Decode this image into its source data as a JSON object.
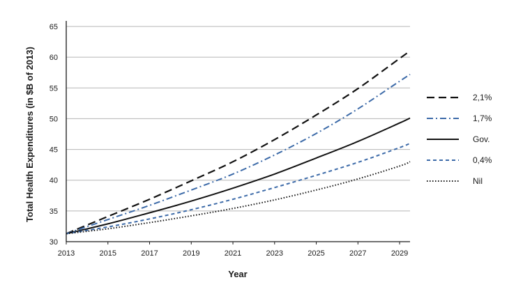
{
  "chart_data": {
    "type": "line",
    "title": "",
    "xlabel": "Year",
    "ylabel": "Total Health Expenditures (in $B of 2013)",
    "xlim": [
      2013,
      2029.5
    ],
    "ylim": [
      30,
      65
    ],
    "x_ticks": [
      "2013",
      "2015",
      "2017",
      "2019",
      "2021",
      "2023",
      "2025",
      "2027",
      "2029"
    ],
    "y_ticks": [
      "30",
      "35",
      "40",
      "45",
      "50",
      "55",
      "60",
      "65"
    ],
    "grid": "horizontal",
    "legend_position": "right",
    "x": [
      2013,
      2015,
      2017,
      2019,
      2021,
      2023,
      2025,
      2027,
      2029,
      2029.5
    ],
    "series": [
      {
        "name": "2,1%",
        "color": "#111111",
        "dash": "long-dash",
        "values": [
          31.3,
          34.1,
          36.9,
          39.9,
          43.0,
          46.6,
          50.6,
          54.9,
          59.8,
          61.0
        ]
      },
      {
        "name": "1,7%",
        "color": "#3c6aa8",
        "dash": "dash-dot",
        "values": [
          31.3,
          33.6,
          35.9,
          38.4,
          41.0,
          44.1,
          47.6,
          51.6,
          56.1,
          57.2
        ]
      },
      {
        "name": "Gov.",
        "color": "#111111",
        "dash": "solid",
        "values": [
          31.3,
          32.9,
          34.7,
          36.6,
          38.7,
          41.0,
          43.6,
          46.3,
          49.3,
          50.1
        ]
      },
      {
        "name": "0,4%",
        "color": "#3c6aa8",
        "dash": "short-dash",
        "values": [
          31.3,
          32.4,
          33.7,
          35.2,
          36.9,
          38.8,
          40.8,
          42.9,
          45.3,
          46.0
        ]
      },
      {
        "name": "Nil",
        "color": "#111111",
        "dash": "dotted",
        "values": [
          31.3,
          32.1,
          33.1,
          34.2,
          35.4,
          36.8,
          38.4,
          40.2,
          42.3,
          43.0
        ]
      }
    ]
  }
}
